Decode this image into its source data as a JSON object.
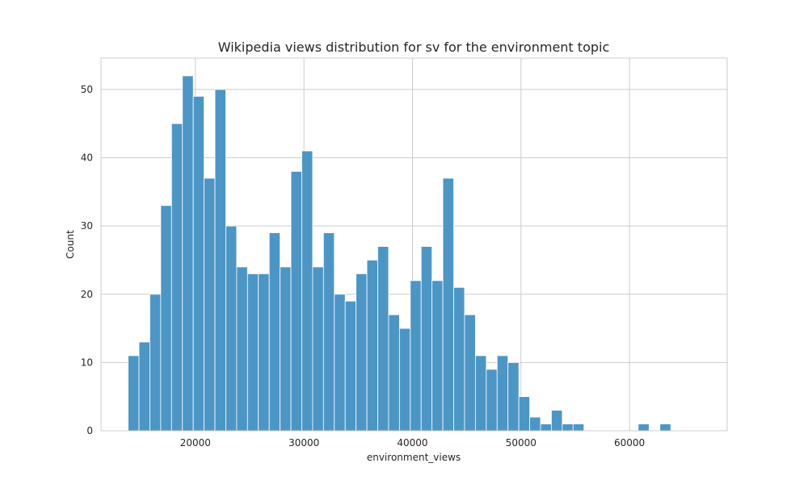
{
  "chart_data": {
    "type": "bar",
    "title": "Wikipedia views distribution for sv for the environment topic",
    "xlabel": "environment_views",
    "ylabel": "Count",
    "xlim": [
      11300,
      69000
    ],
    "ylim": [
      0,
      54.6
    ],
    "xticks": [
      20000,
      30000,
      40000,
      50000,
      60000
    ],
    "xtick_labels": [
      "20000",
      "30000",
      "40000",
      "50000",
      "60000"
    ],
    "yticks": [
      0,
      10,
      20,
      30,
      40,
      50
    ],
    "ytick_labels": [
      "0",
      "10",
      "20",
      "30",
      "40",
      "50"
    ],
    "grid": true,
    "bar_color": "#4c96c6",
    "bin_start": 13800,
    "bin_width": 1000,
    "values": [
      11,
      13,
      20,
      33,
      45,
      52,
      49,
      37,
      50,
      30,
      24,
      23,
      23,
      29,
      24,
      38,
      41,
      24,
      29,
      20,
      19,
      23,
      25,
      27,
      17,
      15,
      22,
      27,
      22,
      37,
      21,
      17,
      11,
      9,
      11,
      10,
      5,
      2,
      1,
      3,
      1,
      1,
      0,
      0,
      0,
      0,
      0,
      1,
      0,
      1
    ]
  }
}
